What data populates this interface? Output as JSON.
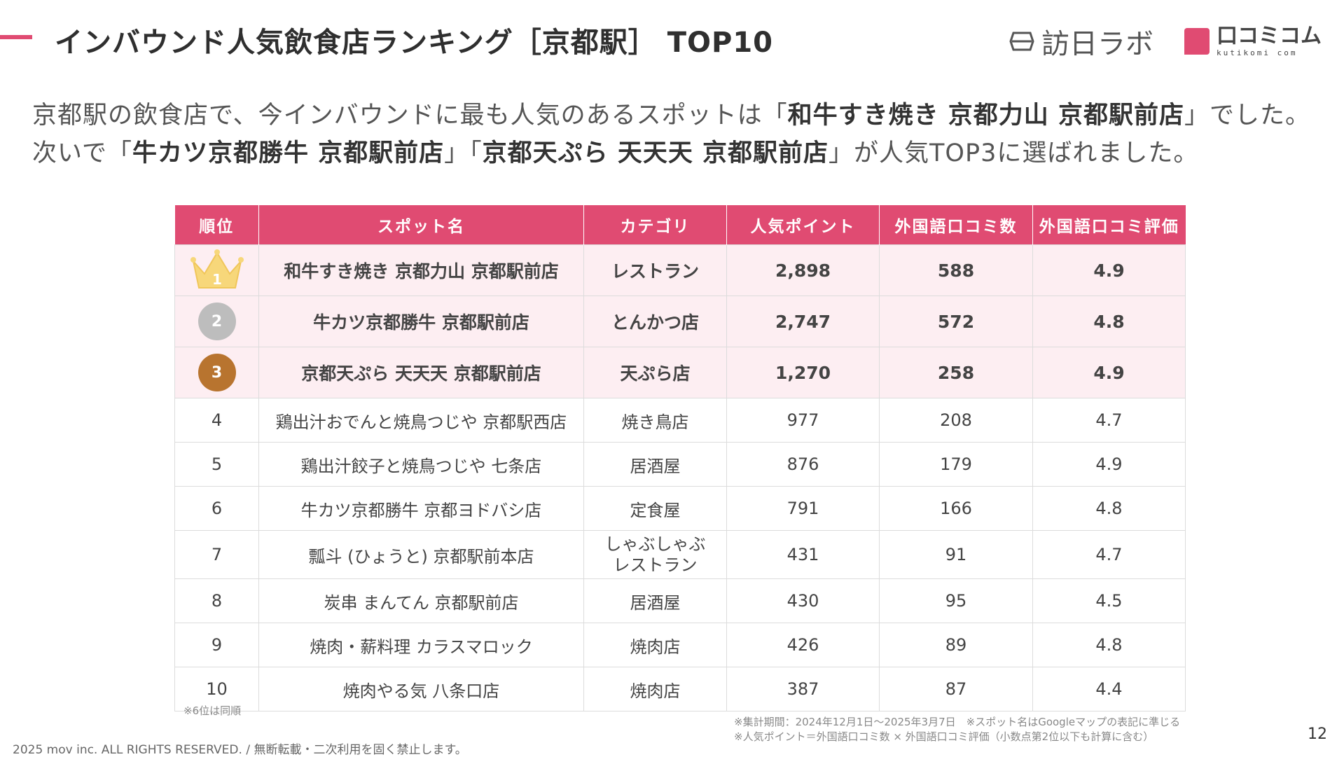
{
  "header": {
    "title": "インバウンド人気飲食店ランキング［京都駅］ TOP10",
    "logo_hoanichi": "訪日ラボ",
    "logo_kutikomi": "口コミコム",
    "logo_kutikomi_sub": "kutikomi com",
    "accent_color": "#e04b72"
  },
  "lead": {
    "p1": "京都駅の飲食店で、今インバウンドに最も人気のあるスポットは「",
    "b1": "和牛すき焼き 京都力山 京都駅前店",
    "p2": "」でした。次いで「",
    "b2": "牛カツ京都勝牛 京都駅前店",
    "p3": "」「",
    "b3": "京都天ぷら 天天天 京都駅前店",
    "p4": "」が人気TOP3に選ばれました。"
  },
  "table": {
    "headers": [
      "順位",
      "スポット名",
      "カテゴリ",
      "人気ポイント",
      "外国語口コミ数",
      "外国語口コミ評価"
    ],
    "rows": [
      {
        "rank": "1",
        "name": "和牛すき焼き 京都力山 京都駅前店",
        "category": "レストラン",
        "points": "2,898",
        "reviews": "588",
        "rating": "4.9"
      },
      {
        "rank": "2",
        "name": "牛カツ京都勝牛 京都駅前店",
        "category": "とんかつ店",
        "points": "2,747",
        "reviews": "572",
        "rating": "4.8"
      },
      {
        "rank": "3",
        "name": "京都天ぷら 天天天 京都駅前店",
        "category": "天ぷら店",
        "points": "1,270",
        "reviews": "258",
        "rating": "4.9"
      },
      {
        "rank": "4",
        "name": "鶏出汁おでんと焼鳥つじや 京都駅西店",
        "category": "焼き鳥店",
        "points": "977",
        "reviews": "208",
        "rating": "4.7"
      },
      {
        "rank": "5",
        "name": "鶏出汁餃子と焼鳥つじや 七条店",
        "category": "居酒屋",
        "points": "876",
        "reviews": "179",
        "rating": "4.9"
      },
      {
        "rank": "6",
        "name": "牛カツ京都勝牛 京都ヨドバシ店",
        "category": "定食屋",
        "points": "791",
        "reviews": "166",
        "rating": "4.8"
      },
      {
        "rank": "7",
        "name": "瓢斗 (ひょうと) 京都駅前本店",
        "category_line1": "しゃぶしゃぶ",
        "category_line2": "レストラン",
        "points": "431",
        "reviews": "91",
        "rating": "4.7"
      },
      {
        "rank": "8",
        "name": "炭串 まんてん 京都駅前店",
        "category": "居酒屋",
        "points": "430",
        "reviews": "95",
        "rating": "4.5"
      },
      {
        "rank": "9",
        "name": "焼肉・薪料理 カラスマロック",
        "category": "焼肉店",
        "points": "426",
        "reviews": "89",
        "rating": "4.8"
      },
      {
        "rank": "10",
        "name": "焼肉やる気 八条口店",
        "category": "焼肉店",
        "points": "387",
        "reviews": "87",
        "rating": "4.4"
      }
    ]
  },
  "notes": {
    "tie": "※6位は同順",
    "period": "※集計期間：2024年12月1日〜2025年3月7日　※スポット名はGoogleマップの表記に準じる",
    "formula": "※人気ポイント＝外国語口コミ数 × 外国語口コミ評価（小数点第2位以下も計算に含む）"
  },
  "footer": {
    "copyright": "2025 mov inc. ALL RIGHTS RESERVED. / 無断転載・二次利用を固く禁止します。",
    "page_number": "12"
  },
  "icons": {
    "crown": "crown-icon",
    "silver": "silver-medal-icon",
    "bronze": "bronze-medal-icon",
    "hoanichi": "hoanichi-logo-icon"
  }
}
